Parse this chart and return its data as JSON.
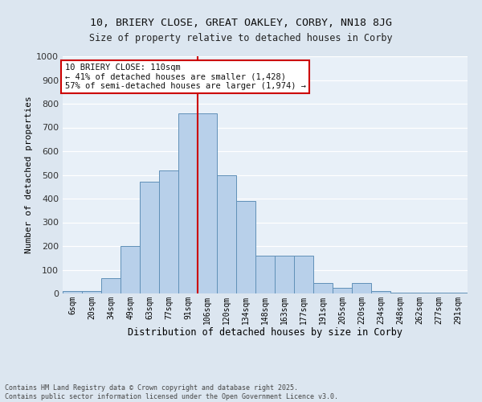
{
  "title1": "10, BRIERY CLOSE, GREAT OAKLEY, CORBY, NN18 8JG",
  "title2": "Size of property relative to detached houses in Corby",
  "xlabel": "Distribution of detached houses by size in Corby",
  "ylabel": "Number of detached properties",
  "categories": [
    "6sqm",
    "20sqm",
    "34sqm",
    "49sqm",
    "63sqm",
    "77sqm",
    "91sqm",
    "106sqm",
    "120sqm",
    "134sqm",
    "148sqm",
    "163sqm",
    "177sqm",
    "191sqm",
    "205sqm",
    "220sqm",
    "234sqm",
    "248sqm",
    "262sqm",
    "277sqm",
    "291sqm"
  ],
  "values": [
    10,
    10,
    65,
    200,
    470,
    520,
    760,
    760,
    500,
    390,
    160,
    160,
    160,
    45,
    25,
    45,
    10,
    5,
    5,
    5,
    5
  ],
  "bar_color": "#b8d0ea",
  "bar_edge_color": "#6090b8",
  "vline_color": "#cc0000",
  "annotation_text": "10 BRIERY CLOSE: 110sqm\n← 41% of detached houses are smaller (1,428)\n57% of semi-detached houses are larger (1,974) →",
  "annotation_box_color": "#cc0000",
  "bg_color": "#dce6f0",
  "plot_bg_color": "#e8f0f8",
  "grid_color": "#ffffff",
  "footnote": "Contains HM Land Registry data © Crown copyright and database right 2025.\nContains public sector information licensed under the Open Government Licence v3.0.",
  "ylim": [
    0,
    1000
  ],
  "yticks": [
    0,
    100,
    200,
    300,
    400,
    500,
    600,
    700,
    800,
    900,
    1000
  ],
  "vline_bin_index": 7
}
